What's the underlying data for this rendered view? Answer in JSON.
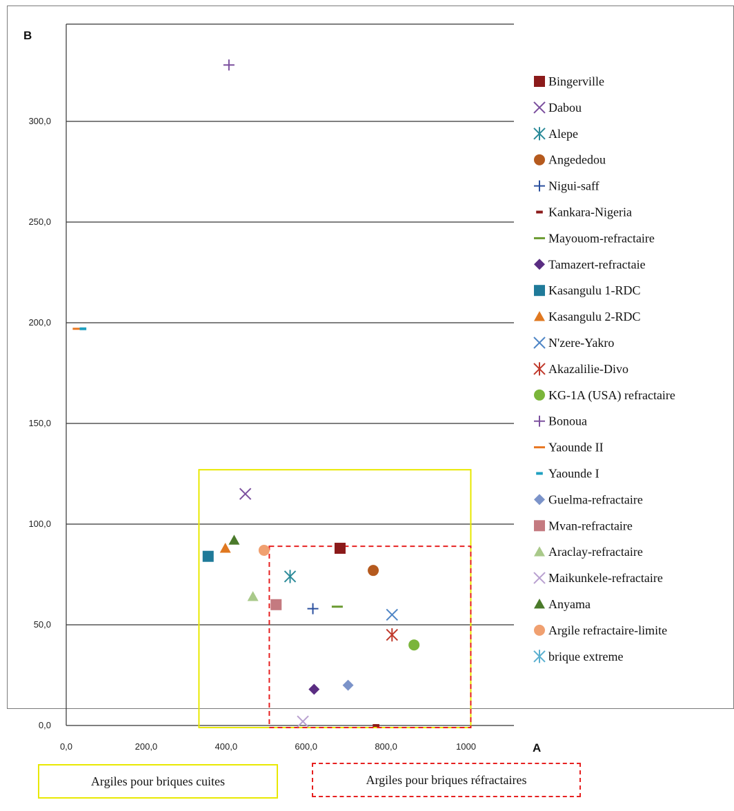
{
  "chart_data": {
    "type": "scatter",
    "xlabel": "A",
    "ylabel": "B",
    "xlim": [
      0,
      1000
    ],
    "ylim": [
      0,
      330
    ],
    "x_ticks": [
      "0,0",
      "200,0",
      "400,0",
      "600,0",
      "800,0",
      "1000"
    ],
    "y_ticks": [
      "0,0",
      "50,0",
      "100,0",
      "150,0",
      "200,0",
      "250,0",
      "300,0"
    ],
    "grid": "horizontal",
    "legend_position": "right",
    "series": [
      {
        "name": "Bingerville",
        "marker": "square",
        "color": "#8b1a1a",
        "x": 685,
        "y": 88
      },
      {
        "name": "Dabou",
        "marker": "x",
        "color": "#7b4f9e",
        "x": 448,
        "y": 115
      },
      {
        "name": "Alepe",
        "marker": "asterisk",
        "color": "#2b8a99",
        "x": 560,
        "y": 74
      },
      {
        "name": "Angededou",
        "marker": "circle",
        "color": "#b55a1e",
        "x": 768,
        "y": 77
      },
      {
        "name": "Nigui-saff",
        "marker": "plus",
        "color": "#2a4f9e",
        "x": 617,
        "y": 58
      },
      {
        "name": "Kankara-Nigeria",
        "marker": "dash-short",
        "color": "#8b1a1a",
        "x": 775,
        "y": 0
      },
      {
        "name": "Mayouom-refractaire",
        "marker": "dash",
        "color": "#6a9a30",
        "x": 678,
        "y": 59
      },
      {
        "name": "Tamazert-refractaie",
        "marker": "diamond",
        "color": "#5a2d82",
        "x": 620,
        "y": 18
      },
      {
        "name": "Kasangulu 1-RDC",
        "marker": "square",
        "color": "#1f7a99",
        "x": 355,
        "y": 84
      },
      {
        "name": "Kasangulu 2-RDC",
        "marker": "triangle",
        "color": "#e07820",
        "x": 398,
        "y": 88
      },
      {
        "name": "N'zere-Yakro",
        "marker": "x",
        "color": "#4f86c6",
        "x": 815,
        "y": 55
      },
      {
        "name": "Akazalilie-Divo",
        "marker": "asterisk",
        "color": "#c0392b",
        "x": 815,
        "y": 45
      },
      {
        "name": "KG-1A (USA) refractaire",
        "marker": "circle",
        "color": "#7ab53a",
        "x": 870,
        "y": 40
      },
      {
        "name": "Bonoua",
        "marker": "plus",
        "color": "#7b4f9e",
        "x": 407,
        "y": 328
      },
      {
        "name": "Yaounde II",
        "marker": "dash",
        "color": "#e87722",
        "x": 30,
        "y": 197
      },
      {
        "name": "Yaounde I",
        "marker": "dash-short",
        "color": "#1fa0c0",
        "x": 42,
        "y": 197
      },
      {
        "name": "Guelma-refractaire",
        "marker": "diamond",
        "color": "#7b93c9",
        "x": 705,
        "y": 20
      },
      {
        "name": "Mvan-refractaire",
        "marker": "square",
        "color": "#c47a80",
        "x": 525,
        "y": 60
      },
      {
        "name": "Araclay-refractaire",
        "marker": "triangle",
        "color": "#a9c98a",
        "x": 467,
        "y": 64
      },
      {
        "name": "Maikunkele-refractaire",
        "marker": "x",
        "color": "#b8a0d0",
        "x": 592,
        "y": 2
      },
      {
        "name": "Anyama",
        "marker": "triangle",
        "color": "#4a7a2a",
        "x": 420,
        "y": 92
      },
      {
        "name": "Argile refractaire-limite",
        "marker": "circle",
        "color": "#f0a070",
        "x": 495,
        "y": 87
      },
      {
        "name": "brique extreme",
        "marker": "asterisk",
        "color": "#5ab0d0",
        "x": 0,
        "y": 0,
        "hidden": true
      }
    ],
    "regions": [
      {
        "label": "Argiles pour briques cuites",
        "style": "solid",
        "color": "#e8e800",
        "x": [
          332,
          1012
        ],
        "y": [
          0,
          127
        ]
      },
      {
        "label": "Argiles pour briques réfractaires",
        "style": "dashed",
        "color": "#e62020",
        "x": [
          508,
          1012
        ],
        "y": [
          0,
          89
        ]
      }
    ]
  }
}
